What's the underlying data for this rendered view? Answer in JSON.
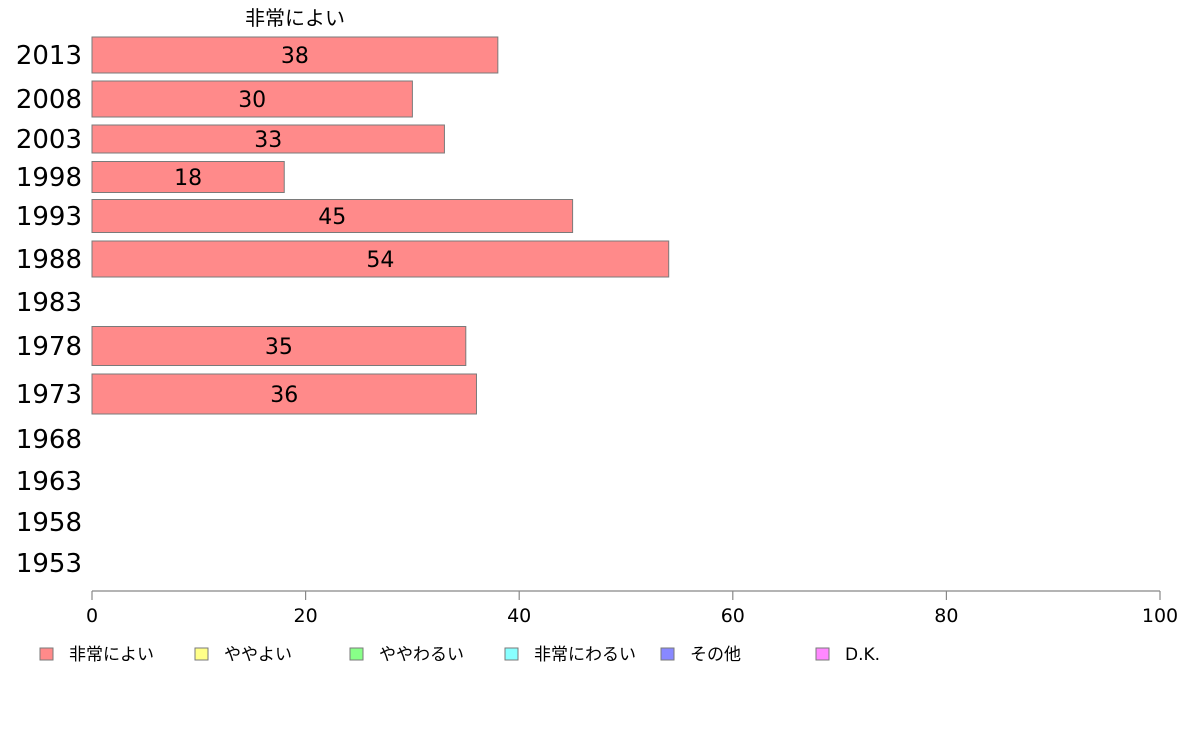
{
  "chart_data": {
    "type": "bar",
    "orientation": "horizontal",
    "series_header": "非常によい",
    "categories": [
      "2013",
      "2008",
      "2003",
      "1998",
      "1993",
      "1988",
      "1983",
      "1978",
      "1973",
      "1968",
      "1963",
      "1958",
      "1953"
    ],
    "series": [
      {
        "name": "非常によい",
        "values": [
          38,
          30,
          33,
          18,
          45,
          54,
          null,
          35,
          36,
          null,
          null,
          null,
          null
        ],
        "color": "#ff8a8a"
      }
    ],
    "xlim": [
      0,
      100
    ],
    "xticks": [
      "0",
      "20",
      "40",
      "60",
      "80",
      "100"
    ],
    "grid": false,
    "legend": {
      "placement": "bottom",
      "items": [
        {
          "label": "非常によい",
          "color": "#ff8a8a"
        },
        {
          "label": "ややよい",
          "color": "#ffff88"
        },
        {
          "label": "ややわるい",
          "color": "#88ff88"
        },
        {
          "label": "非常にわるい",
          "color": "#88ffff"
        },
        {
          "label": "その他",
          "color": "#8888ff"
        },
        {
          "label": "D.K.",
          "color": "#ff88ff"
        }
      ]
    }
  }
}
